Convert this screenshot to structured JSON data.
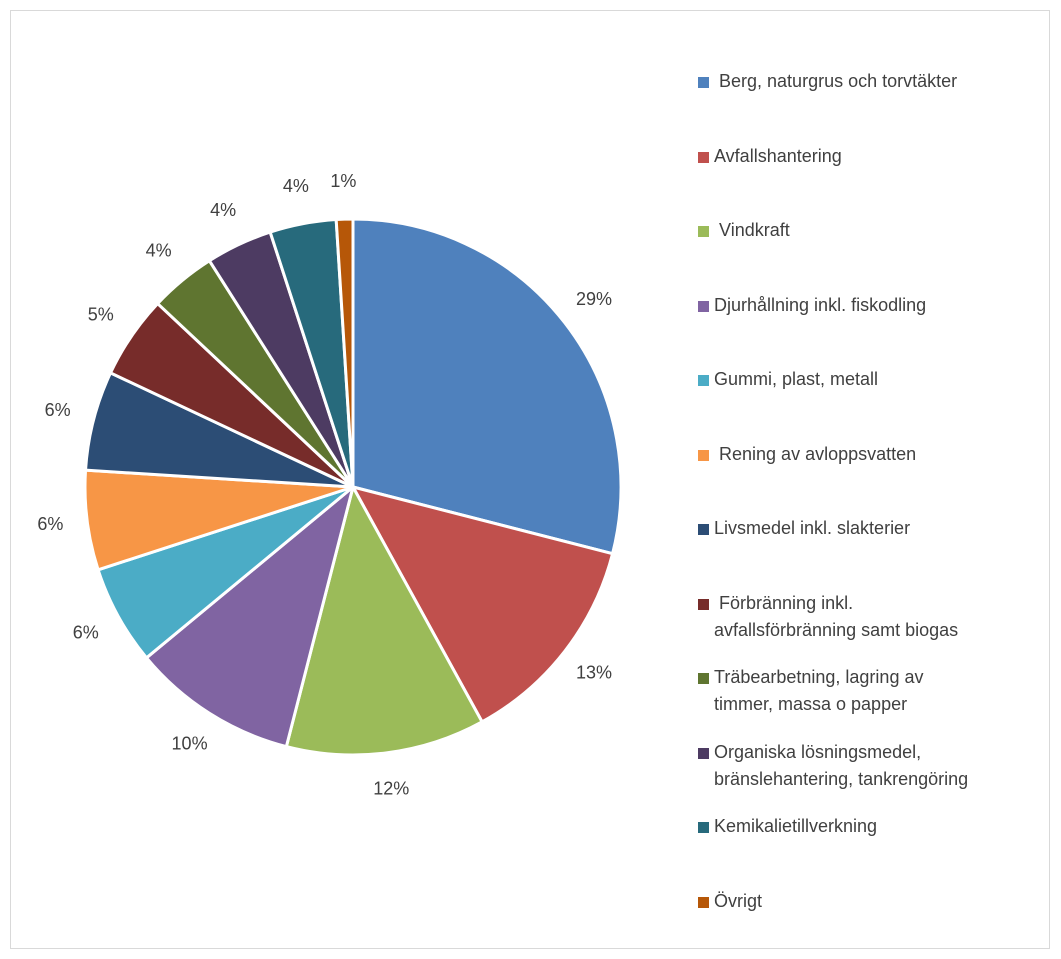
{
  "chart_data": {
    "type": "pie",
    "slices": [
      {
        "label": " Berg, naturgrus och torvtäkter",
        "value": 29,
        "value_label": "29%",
        "color": "#4f81bd"
      },
      {
        "label": "Avfallshantering",
        "value": 13,
        "value_label": "13%",
        "color": "#c0504d"
      },
      {
        "label": " Vindkraft",
        "value": 12,
        "value_label": "12%",
        "color": "#9bbb59"
      },
      {
        "label": "Djurhållning inkl. fiskodling",
        "value": 10,
        "value_label": "10%",
        "color": "#8064a2"
      },
      {
        "label": "Gummi, plast, metall",
        "value": 6,
        "value_label": "6%",
        "color": "#4bacc6"
      },
      {
        "label": " Rening av avloppsvatten",
        "value": 6,
        "value_label": "6%",
        "color": "#f79646"
      },
      {
        "label": "Livsmedel inkl. slakterier",
        "value": 6,
        "value_label": "6%",
        "color": "#2c4d75"
      },
      {
        "label": " Förbränning inkl.\navfallsförbränning samt biogas",
        "value": 5,
        "value_label": "5%",
        "color": "#772c2a"
      },
      {
        "label": "Träbearbetning, lagring av\ntimmer, massa o papper",
        "value": 4,
        "value_label": "4%",
        "color": "#5f7530"
      },
      {
        "label": "Organiska lösningsmedel,\nbränslehantering, tankrengöring",
        "value": 4,
        "value_label": "4%",
        "color": "#4d3b62"
      },
      {
        "label": "Kemikalietillverkning",
        "value": 4,
        "value_label": "4%",
        "color": "#276a7c"
      },
      {
        "label": "Övrigt",
        "value": 1,
        "value_label": "1%",
        "color": "#b65708"
      }
    ],
    "legend_position": "right"
  }
}
